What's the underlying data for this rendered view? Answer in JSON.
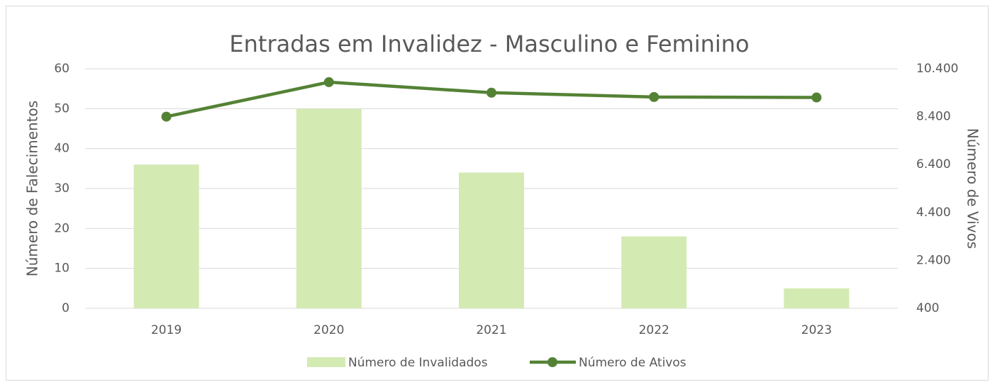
{
  "chart_data": {
    "type": "bar",
    "title": "Entradas em Invalidez - Masculino e Feminino",
    "y_label": "Número de Falecimentos",
    "y2_label": "Número de Vivos",
    "categories": [
      "2019",
      "2020",
      "2021",
      "2022",
      "2023"
    ],
    "series": [
      {
        "name": "Número de Invalidados",
        "type": "bar",
        "color": "#d4eab3",
        "values": [
          36,
          50,
          34,
          18,
          5
        ]
      },
      {
        "name": "Número de Ativos",
        "type": "line",
        "axis": "y2",
        "color": "#548235",
        "values": [
          8400,
          9840,
          9400,
          9220,
          9200
        ]
      }
    ],
    "ylim": [
      0,
      60
    ],
    "yticks": [
      0,
      10,
      20,
      30,
      40,
      50,
      60
    ],
    "y2lim": [
      400,
      10400
    ],
    "y2ticks": [
      {
        "value": 400,
        "label": "400"
      },
      {
        "value": 2400,
        "label": "2.400"
      },
      {
        "value": 4400,
        "label": "4.400"
      },
      {
        "value": 6400,
        "label": "6.400"
      },
      {
        "value": 8400,
        "label": "8.400"
      },
      {
        "value": 10400,
        "label": "10.400"
      }
    ],
    "grid": true,
    "legend": "bottom"
  }
}
